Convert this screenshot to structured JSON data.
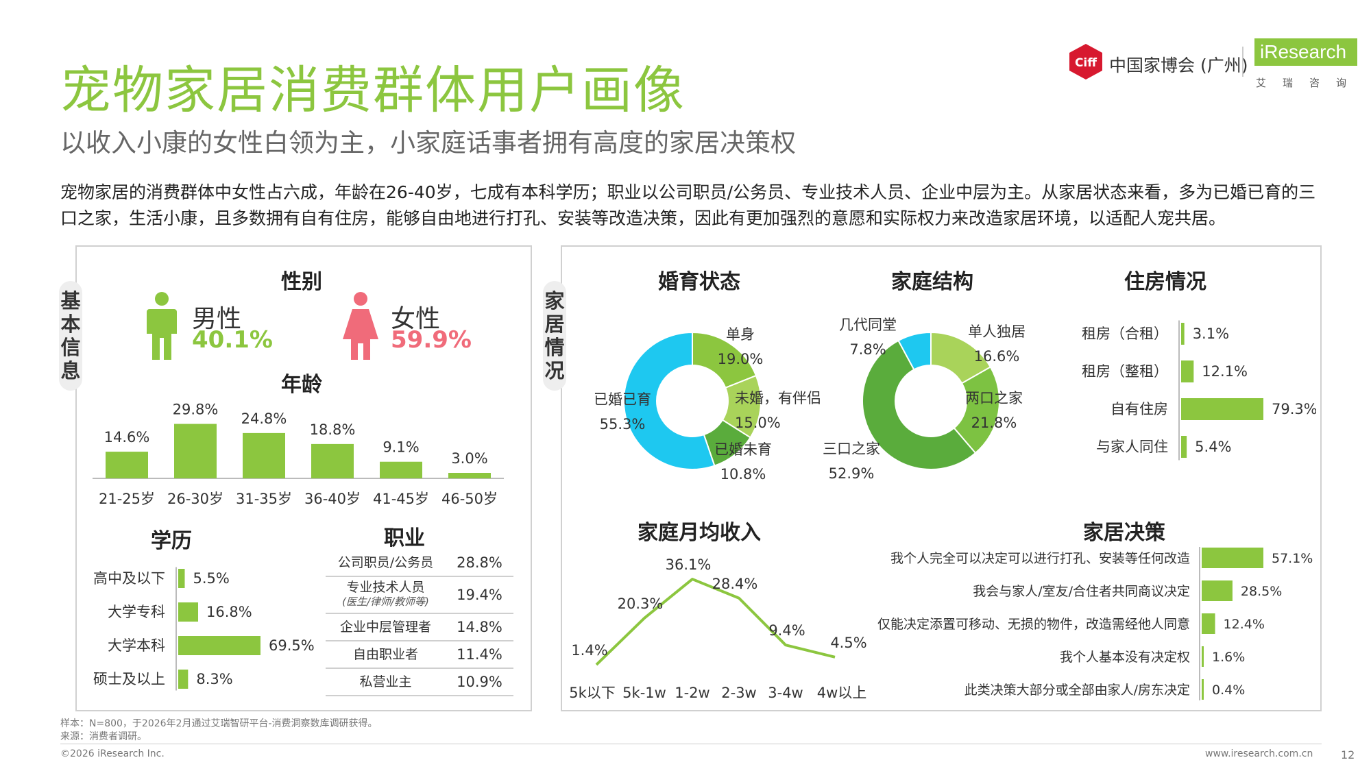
{
  "header": {
    "title": "宠物家居消费群体用户画像",
    "subtitle": "以收入小康的女性白领为主，小家庭话事者拥有高度的家居决策权",
    "description": "宠物家居的消费群体中女性占六成，年龄在26-40岁，七成有本科学历；职业以公司职员/公务员、专业技术人员、企业中层为主。从家居状态来看，多为已婚已育的三口之家，生活小康，且多数拥有自有住房，能够自由地进行打孔、安装等改造决策，因此有更加强烈的意愿和实际权力来改造家居环境，以适配人宠共居。"
  },
  "logos": {
    "ciff_mark": "Ciff",
    "ciff_text": "中国家博会 (广州)",
    "iresearch": "iResearch",
    "iresearch_cn": "艾瑞咨询"
  },
  "left_panel": {
    "tab": "基本信息",
    "gender": {
      "title": "性别",
      "male_label": "男性",
      "male_value": "40.1%",
      "female_label": "女性",
      "female_value": "59.9%"
    },
    "age_title": "年龄",
    "education_title": "学历",
    "occupation_title": "职业"
  },
  "right_panel": {
    "tab": "家居情况",
    "marital_title": "婚育状态",
    "family_title": "家庭结构",
    "housing_title": "住房情况",
    "income_title": "家庭月均收入",
    "decision_title": "家居决策"
  },
  "footer": {
    "sample": "样本：N=800，于2026年2月通过艾瑞智研平台-消费洞察数库调研获得。",
    "source": "来源：消费者调研。",
    "copyright": "©2026 iResearch Inc.",
    "website": "www.iresearch.com.cn",
    "page": "12"
  },
  "colors": {
    "accent": "#8cc63f",
    "female": "#f06b7a",
    "blue": "#1ec8f0",
    "dark_green": "#5aac3c",
    "mid_green": "#7dc242"
  },
  "chart_data": [
    {
      "id": "age",
      "type": "bar",
      "title": "年龄",
      "categories": [
        "21-25岁",
        "26-30岁",
        "31-35岁",
        "36-40岁",
        "41-45岁",
        "46-50岁"
      ],
      "values": [
        14.6,
        29.8,
        24.8,
        18.8,
        9.1,
        3.0
      ],
      "labels": [
        "14.6%",
        "29.8%",
        "24.8%",
        "18.8%",
        "9.1%",
        "3.0%"
      ]
    },
    {
      "id": "education",
      "type": "bar",
      "orientation": "horizontal",
      "title": "学历",
      "categories": [
        "高中及以下",
        "大学专科",
        "大学本科",
        "硕士及以上"
      ],
      "values": [
        5.5,
        16.8,
        69.5,
        8.3
      ],
      "labels": [
        "5.5%",
        "16.8%",
        "69.5%",
        "8.3%"
      ]
    },
    {
      "id": "occupation",
      "type": "table",
      "title": "职业",
      "rows": [
        {
          "name": "公司职员/公务员",
          "note": "",
          "value": "28.8%"
        },
        {
          "name": "专业技术人员",
          "note": "(医生/律师/教师等)",
          "value": "19.4%"
        },
        {
          "name": "企业中层管理者",
          "note": "",
          "value": "14.8%"
        },
        {
          "name": "自由职业者",
          "note": "",
          "value": "11.4%"
        },
        {
          "name": "私营业主",
          "note": "",
          "value": "10.9%"
        }
      ]
    },
    {
      "id": "marital",
      "type": "pie",
      "donut": true,
      "title": "婚育状态",
      "slices": [
        {
          "name": "单身",
          "value": 19.0,
          "label": "19.0%",
          "color": "#8cc63f"
        },
        {
          "name": "未婚，有伴侣",
          "value": 15.0,
          "label": "15.0%",
          "color": "#a9d35a"
        },
        {
          "name": "已婚未育",
          "value": 10.8,
          "label": "10.8%",
          "color": "#5aac3c"
        },
        {
          "name": "已婚已育",
          "value": 55.3,
          "label": "55.3%",
          "color": "#1ec8f0"
        }
      ]
    },
    {
      "id": "family",
      "type": "pie",
      "donut": true,
      "title": "家庭结构",
      "slices": [
        {
          "name": "单人独居",
          "value": 16.6,
          "label": "16.6%",
          "color": "#a9d35a"
        },
        {
          "name": "两口之家",
          "value": 21.8,
          "label": "21.8%",
          "color": "#7dc242"
        },
        {
          "name": "三口之家",
          "value": 52.9,
          "label": "52.9%",
          "color": "#5aac3c"
        },
        {
          "name": "几代同堂",
          "value": 7.8,
          "label": "7.8%",
          "color": "#1ec8f0"
        }
      ]
    },
    {
      "id": "housing",
      "type": "bar",
      "orientation": "horizontal",
      "title": "住房情况",
      "categories": [
        "租房（合租）",
        "租房（整租）",
        "自有住房",
        "与家人同住"
      ],
      "values": [
        3.1,
        12.1,
        79.3,
        5.4
      ],
      "labels": [
        "3.1%",
        "12.1%",
        "79.3%",
        "5.4%"
      ]
    },
    {
      "id": "income",
      "type": "line",
      "title": "家庭月均收入",
      "categories": [
        "5k以下",
        "5k-1w",
        "1-2w",
        "2-3w",
        "3-4w",
        "4w以上"
      ],
      "values": [
        1.4,
        20.3,
        36.1,
        28.4,
        9.4,
        4.5
      ],
      "labels": [
        "1.4%",
        "20.3%",
        "36.1%",
        "28.4%",
        "9.4%",
        "4.5%"
      ]
    },
    {
      "id": "decision",
      "type": "bar",
      "orientation": "horizontal",
      "title": "家居决策",
      "categories": [
        "我个人完全可以决定可以进行打孔、安装等任何改造",
        "我会与家人/室友/合住者共同商议决定",
        "仅能决定添置可移动、无损的物件，改造需经他人同意",
        "我个人基本没有决定权",
        "此类决策大部分或全部由家人/房东决定"
      ],
      "values": [
        57.1,
        28.5,
        12.4,
        1.6,
        0.4
      ],
      "labels": [
        "57.1%",
        "28.5%",
        "12.4%",
        "1.6%",
        "0.4%"
      ]
    }
  ]
}
